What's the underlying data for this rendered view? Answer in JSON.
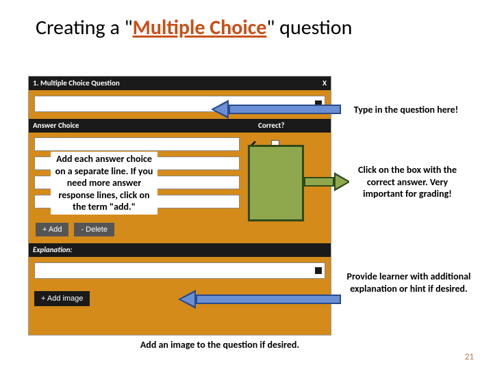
{
  "title": {
    "pre": "Creating a \"",
    "emph": "Multiple Choice",
    "post": "\" question"
  },
  "colors": {
    "accent": "#c75018",
    "panel_bg": "#d48b1a",
    "header_bg": "#1a1a1a",
    "arrow_blue_fill": "#6b8fd4",
    "arrow_blue_stroke": "#2a4a8a",
    "arrow_green_fill": "#8fa84e",
    "arrow_green_stroke": "#2e4a1a",
    "pagenum": "#b97a4a"
  },
  "panel": {
    "header": "1. Multiple Choice Question",
    "close": "X",
    "answer_header": "Answer Choice",
    "correct_header": "Correct?",
    "rows": 4,
    "buttons": {
      "add": "+ Add",
      "delete": "- Delete"
    },
    "explanation_header": "Explanation:",
    "add_image": "+ Add image"
  },
  "callouts": {
    "question": "Type in the question here!",
    "answers": "Add each answer choice on a separate line. If you need more answer response lines, click on the term \"add.\"",
    "correct": "Click on the box with the correct answer. Very important for grading!",
    "explanation": "Provide learner with additional explanation or hint if desired.",
    "image": "Add an image to the question if desired."
  },
  "page_number": "21"
}
